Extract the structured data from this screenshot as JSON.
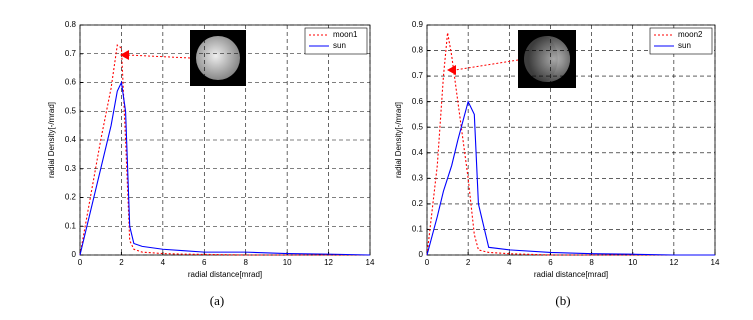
{
  "chart_data": [
    {
      "type": "line",
      "caption": "(a)",
      "xlabel": "radial distance[mrad]",
      "ylabel": "radial Density[-/mrad]",
      "x": [
        0,
        0.5,
        1,
        1.5,
        1.8,
        2,
        2.2,
        2.4,
        2.6,
        3,
        4,
        5,
        6,
        8,
        10,
        12,
        14
      ],
      "series": [
        {
          "name": "moon1",
          "color": "#ff0000",
          "values": [
            0,
            0.2,
            0.4,
            0.58,
            0.73,
            0.72,
            0.4,
            0.05,
            0.02,
            0.01,
            0.005,
            0.003,
            0.002,
            0,
            0,
            0,
            0
          ]
        },
        {
          "name": "sun",
          "color": "#0000ff",
          "values": [
            0,
            0.15,
            0.3,
            0.45,
            0.57,
            0.6,
            0.5,
            0.1,
            0.04,
            0.03,
            0.02,
            0.015,
            0.01,
            0.01,
            0.005,
            0.003,
            0
          ]
        }
      ],
      "xlim": [
        0,
        14
      ],
      "xticks": [
        0,
        2,
        4,
        6,
        8,
        10,
        12,
        14
      ],
      "ylim": [
        0,
        0.8
      ],
      "yticks": [
        0,
        0.1,
        0.2,
        0.3,
        0.4,
        0.5,
        0.6,
        0.7,
        0.8
      ],
      "grid": true,
      "legend": "upper right"
    },
    {
      "type": "line",
      "caption": "(b)",
      "xlabel": "radial distance[mrad]",
      "ylabel": "radial Density[-/mrad]",
      "x": [
        0,
        0.5,
        0.8,
        1,
        1.2,
        1.5,
        2,
        2.3,
        2.5,
        3,
        4,
        6,
        8,
        10,
        12,
        14
      ],
      "series": [
        {
          "name": "moon2",
          "color": "#ff0000",
          "values": [
            0,
            0.35,
            0.7,
            0.87,
            0.78,
            0.6,
            0.3,
            0.08,
            0.02,
            0.01,
            0.005,
            0,
            0,
            0,
            0,
            0
          ]
        },
        {
          "name": "sun",
          "color": "#0000ff",
          "values": [
            0,
            0.15,
            0.25,
            0.3,
            0.35,
            0.45,
            0.6,
            0.55,
            0.2,
            0.03,
            0.02,
            0.01,
            0.005,
            0.003,
            0,
            0
          ]
        }
      ],
      "xlim": [
        0,
        14
      ],
      "xticks": [
        0,
        2,
        4,
        6,
        8,
        10,
        12,
        14
      ],
      "ylim": [
        0,
        0.9
      ],
      "yticks": [
        0,
        0.1,
        0.2,
        0.3,
        0.4,
        0.5,
        0.6,
        0.7,
        0.8,
        0.9
      ],
      "grid": true,
      "legend": "upper right"
    }
  ]
}
